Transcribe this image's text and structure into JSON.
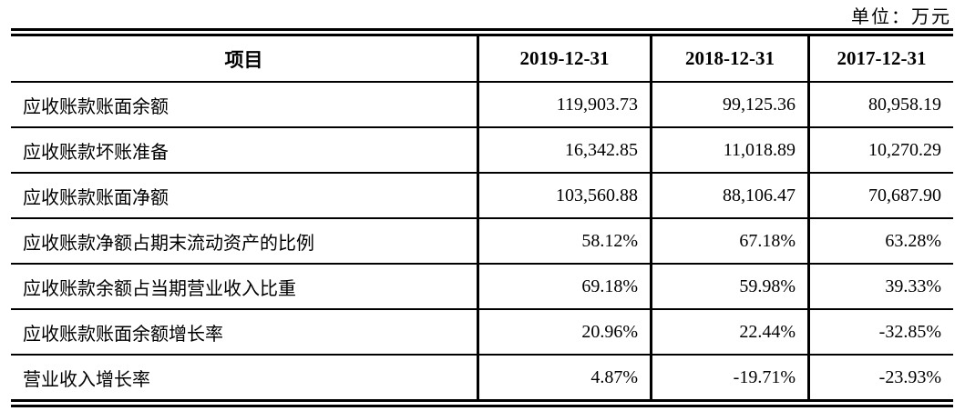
{
  "unit_label": "单位：万元",
  "table": {
    "columns": [
      "项目",
      "2019-12-31",
      "2018-12-31",
      "2017-12-31"
    ],
    "rows": [
      {
        "label": "应收账款账面余额",
        "values": [
          "119,903.73",
          "99,125.36",
          "80,958.19"
        ]
      },
      {
        "label": "应收账款坏账准备",
        "values": [
          "16,342.85",
          "11,018.89",
          "10,270.29"
        ]
      },
      {
        "label": "应收账款账面净额",
        "values": [
          "103,560.88",
          "88,106.47",
          "70,687.90"
        ]
      },
      {
        "label": "应收账款净额占期末流动资产的比例",
        "values": [
          "58.12%",
          "67.18%",
          "63.28%"
        ]
      },
      {
        "label": "应收账款余额占当期营业收入比重",
        "values": [
          "69.18%",
          "59.98%",
          "39.33%"
        ]
      },
      {
        "label": "应收账款账面余额增长率",
        "values": [
          "20.96%",
          "22.44%",
          "-32.85%"
        ]
      },
      {
        "label": "营业收入增长率",
        "values": [
          "4.87%",
          "-19.71%",
          "-23.93%"
        ]
      }
    ]
  }
}
